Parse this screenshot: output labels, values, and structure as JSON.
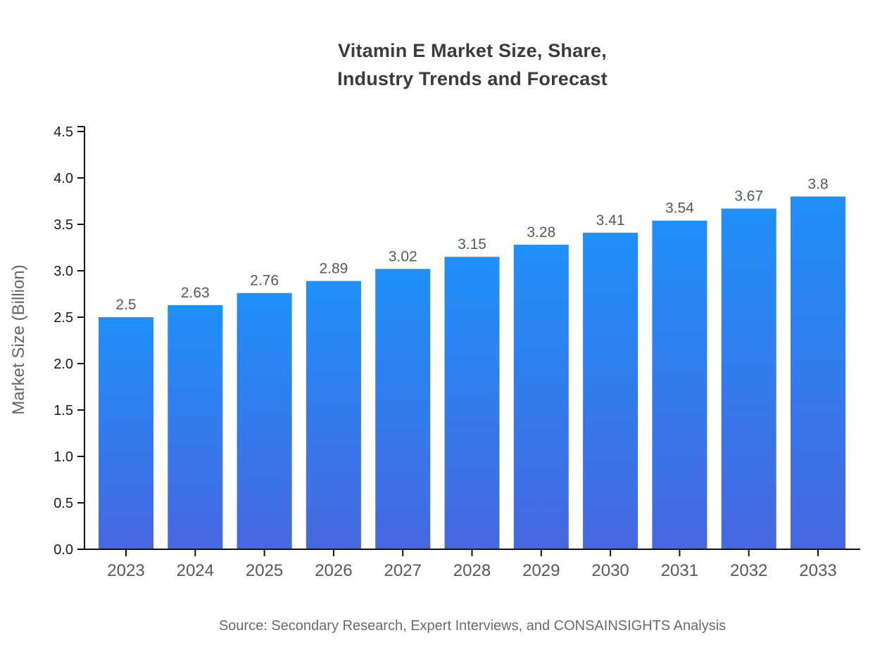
{
  "title": {
    "line1": "Vitamin E Market Size, Share,",
    "line2": "Industry Trends and Forecast"
  },
  "source": "Source: Secondary Research, Expert Interviews, and CONSAINSIGHTS Analysis",
  "colors": {
    "bar_gradient_top": "#1f90fa",
    "bar_gradient_bottom": "#4767e0",
    "axis": "#111111",
    "ytick_label": "#1a1a1a",
    "xtick_label": "#58595b",
    "value_label": "#58595b",
    "ylabel": "#666666",
    "title": "#3b3b3b",
    "source": "#6b6b6b",
    "background": "#ffffff"
  },
  "chart_data": {
    "type": "bar",
    "title": "Vitamin E Market Size, Share, Industry Trends and Forecast",
    "categories": [
      "2023",
      "2024",
      "2025",
      "2026",
      "2027",
      "2028",
      "2029",
      "2030",
      "2031",
      "2032",
      "2033"
    ],
    "values": [
      2.5,
      2.63,
      2.76,
      2.89,
      3.02,
      3.15,
      3.28,
      3.41,
      3.54,
      3.67,
      3.8
    ],
    "value_labels": [
      "2.5",
      "2.63",
      "2.76",
      "2.89",
      "3.02",
      "3.15",
      "3.28",
      "3.41",
      "3.54",
      "3.67",
      "3.8"
    ],
    "xlabel": "",
    "ylabel": "Market Size (Billion)",
    "ylim": [
      0,
      4.5
    ],
    "ytick_step": 0.5,
    "ytick_labels": [
      "0.0",
      "0.5",
      "1.0",
      "1.5",
      "2.0",
      "2.5",
      "3.0",
      "3.5",
      "4.0",
      "4.5"
    ],
    "grid": false,
    "legend": false,
    "bar_color_top": "#1f90fa",
    "bar_color_bottom": "#4767e0",
    "source": "Source: Secondary Research, Expert Interviews, and CONSAINSIGHTS Analysis"
  }
}
